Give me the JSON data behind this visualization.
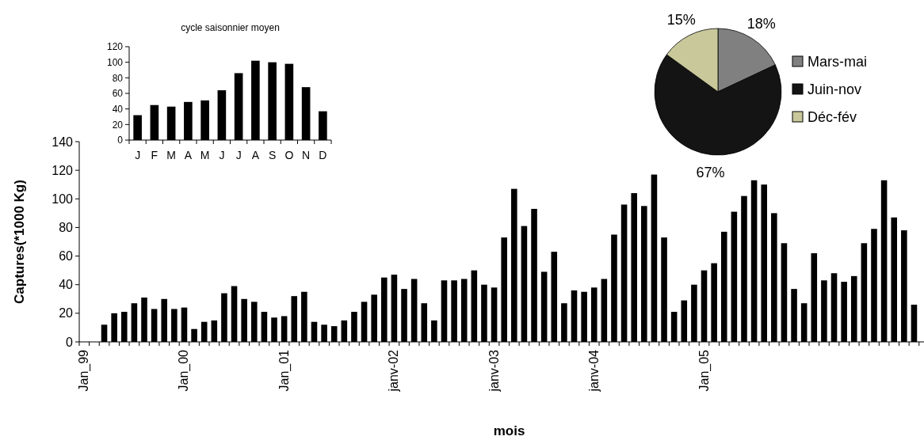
{
  "chart_data": [
    {
      "type": "bar",
      "xlabel": "mois",
      "ylabel": "Captures(*1000 Kg)",
      "color": "#000000",
      "ylim": [
        0,
        140
      ],
      "yticks": [
        0,
        20,
        40,
        60,
        80,
        100,
        120,
        140
      ],
      "grid": false,
      "categories": [
        "Jan_99",
        null,
        null,
        null,
        null,
        null,
        null,
        null,
        null,
        null,
        "Jan_00",
        null,
        null,
        null,
        null,
        null,
        null,
        null,
        null,
        null,
        "Jan_01",
        null,
        null,
        null,
        null,
        null,
        null,
        null,
        null,
        null,
        null,
        "janv-02",
        null,
        null,
        null,
        null,
        null,
        null,
        null,
        null,
        null,
        "janv-03",
        null,
        null,
        null,
        null,
        null,
        null,
        null,
        null,
        null,
        "janv-04",
        null,
        null,
        null,
        null,
        null,
        null,
        null,
        null,
        null,
        null,
        "Jan_05",
        null,
        null,
        null,
        null,
        null,
        null,
        null,
        null,
        null,
        null,
        null,
        null,
        null,
        null,
        null,
        null,
        null,
        null,
        null,
        null,
        null,
        null,
        null
      ],
      "values": [
        null,
        null,
        12,
        20,
        21,
        27,
        31,
        23,
        30,
        23,
        24,
        9,
        14,
        15,
        34,
        39,
        30,
        28,
        21,
        17,
        18,
        32,
        35,
        14,
        12,
        11,
        15,
        21,
        28,
        33,
        45,
        47,
        37,
        44,
        27,
        15,
        43,
        43,
        44,
        50,
        40,
        38,
        73,
        107,
        81,
        93,
        49,
        63,
        27,
        36,
        35,
        38,
        44,
        75,
        96,
        104,
        95,
        117,
        73,
        21,
        29,
        40,
        50,
        55,
        77,
        91,
        102,
        113,
        110,
        90,
        69,
        37,
        27,
        62,
        43,
        48,
        42,
        46,
        69,
        79,
        113,
        87,
        78,
        26,
        null,
        null
      ]
    },
    {
      "type": "bar",
      "title": "cycle saisonnier moyen",
      "color": "#000000",
      "ylim": [
        0,
        120
      ],
      "yticks": [
        0,
        20,
        40,
        60,
        80,
        100,
        120
      ],
      "grid": false,
      "categories": [
        "J",
        "F",
        "M",
        "A",
        "M",
        "J",
        "J",
        "A",
        "S",
        "O",
        "N",
        "D"
      ],
      "values": [
        32,
        45,
        43,
        49,
        51,
        64,
        86,
        102,
        100,
        98,
        68,
        37
      ]
    },
    {
      "type": "pie",
      "legend": "right",
      "value_labels": [
        "18%",
        "67%",
        "15%"
      ],
      "categories": [
        "Mars-mai",
        "Juin-nov",
        "Déc-fév"
      ],
      "values": [
        18,
        67,
        15
      ],
      "colors": [
        "#808080",
        "#141414",
        "#c8c89a"
      ]
    }
  ]
}
